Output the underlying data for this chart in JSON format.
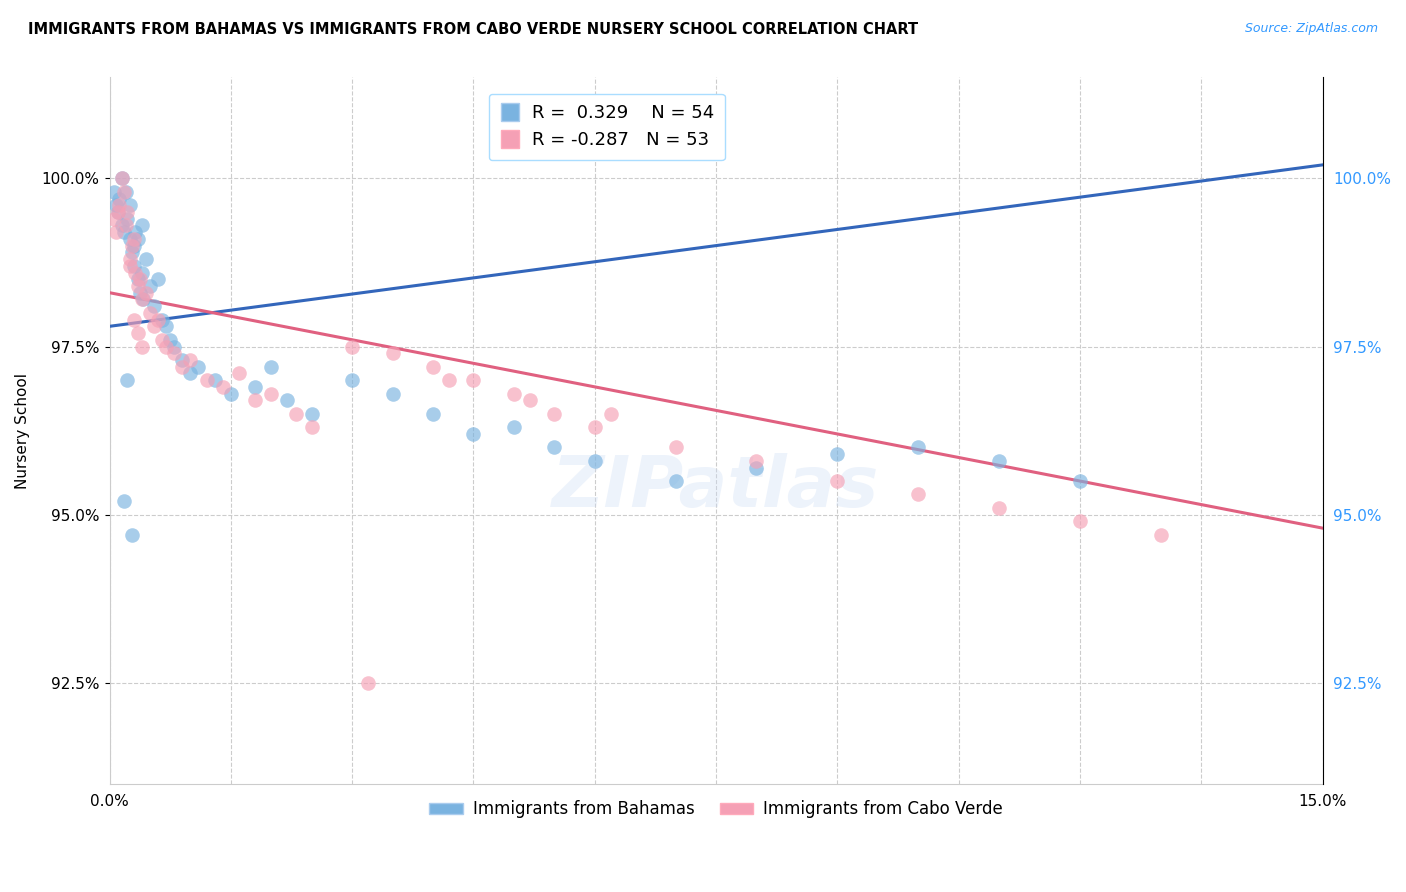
{
  "title": "IMMIGRANTS FROM BAHAMAS VS IMMIGRANTS FROM CABO VERDE NURSERY SCHOOL CORRELATION CHART",
  "source": "Source: ZipAtlas.com",
  "ylabel": "Nursery School",
  "xlim": [
    0.0,
    15.0
  ],
  "ylim": [
    91.0,
    101.5
  ],
  "ytick_vals": [
    92.5,
    95.0,
    97.5,
    100.0
  ],
  "xtick_vals": [
    0.0,
    1.5,
    3.0,
    4.5,
    6.0,
    7.5,
    9.0,
    10.5,
    12.0,
    13.5,
    15.0
  ],
  "legend_r_blue": "0.329",
  "legend_n_blue": "54",
  "legend_r_pink": "-0.287",
  "legend_n_pink": "53",
  "blue_color": "#7ab3e0",
  "pink_color": "#f5a0b5",
  "trendline_blue": "#3366bb",
  "trendline_pink": "#e06080",
  "blue_scatter_x": [
    0.05,
    0.08,
    0.1,
    0.12,
    0.15,
    0.15,
    0.18,
    0.2,
    0.22,
    0.25,
    0.25,
    0.28,
    0.3,
    0.3,
    0.32,
    0.35,
    0.35,
    0.38,
    0.4,
    0.4,
    0.42,
    0.45,
    0.5,
    0.55,
    0.6,
    0.65,
    0.7,
    0.75,
    0.8,
    0.9,
    1.0,
    1.1,
    1.3,
    1.5,
    1.8,
    2.0,
    2.2,
    2.5,
    3.0,
    3.5,
    4.0,
    4.5,
    5.0,
    5.5,
    6.0,
    7.0,
    8.0,
    9.0,
    10.0,
    11.0,
    12.0,
    0.28,
    0.18,
    0.22
  ],
  "blue_scatter_y": [
    99.8,
    99.6,
    99.5,
    99.7,
    100.0,
    99.3,
    99.2,
    99.8,
    99.4,
    99.1,
    99.6,
    98.9,
    98.7,
    99.0,
    99.2,
    98.5,
    99.1,
    98.3,
    98.6,
    99.3,
    98.2,
    98.8,
    98.4,
    98.1,
    98.5,
    97.9,
    97.8,
    97.6,
    97.5,
    97.3,
    97.1,
    97.2,
    97.0,
    96.8,
    96.9,
    97.2,
    96.7,
    96.5,
    97.0,
    96.8,
    96.5,
    96.2,
    96.3,
    96.0,
    95.8,
    95.5,
    95.7,
    95.9,
    96.0,
    95.8,
    95.5,
    94.7,
    95.2,
    97.0
  ],
  "pink_scatter_x": [
    0.05,
    0.08,
    0.1,
    0.12,
    0.15,
    0.18,
    0.2,
    0.22,
    0.25,
    0.28,
    0.3,
    0.32,
    0.35,
    0.38,
    0.4,
    0.45,
    0.5,
    0.55,
    0.6,
    0.65,
    0.7,
    0.8,
    0.9,
    1.0,
    1.2,
    1.4,
    1.6,
    1.8,
    2.0,
    2.3,
    2.5,
    3.0,
    3.5,
    4.0,
    4.5,
    5.0,
    5.5,
    6.0,
    7.0,
    8.0,
    9.0,
    10.0,
    11.0,
    12.0,
    13.0,
    0.25,
    0.3,
    0.35,
    0.4,
    4.2,
    5.2,
    6.2,
    3.2
  ],
  "pink_scatter_y": [
    99.4,
    99.2,
    99.5,
    99.6,
    100.0,
    99.8,
    99.3,
    99.5,
    98.8,
    99.0,
    99.1,
    98.6,
    98.4,
    98.5,
    98.2,
    98.3,
    98.0,
    97.8,
    97.9,
    97.6,
    97.5,
    97.4,
    97.2,
    97.3,
    97.0,
    96.9,
    97.1,
    96.7,
    96.8,
    96.5,
    96.3,
    97.5,
    97.4,
    97.2,
    97.0,
    96.8,
    96.5,
    96.3,
    96.0,
    95.8,
    95.5,
    95.3,
    95.1,
    94.9,
    94.7,
    98.7,
    97.9,
    97.7,
    97.5,
    97.0,
    96.7,
    96.5,
    92.5
  ]
}
